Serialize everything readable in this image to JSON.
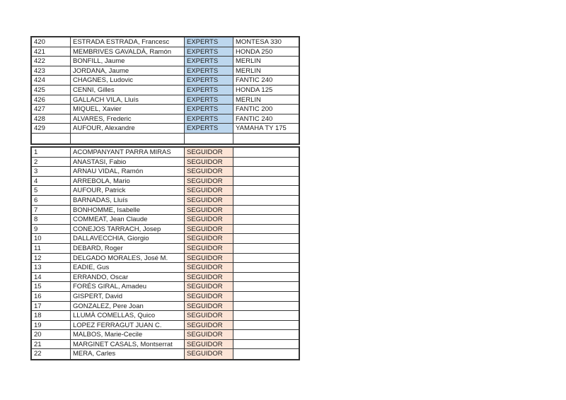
{
  "document": {
    "background_color": "#ffffff",
    "border_color": "#3a3a3a",
    "sections": [
      {
        "id": "experts",
        "category_bg": "#bdd7ee",
        "rows": [
          {
            "num": "420",
            "name": "ESTRADA ESTRADA, Francesc",
            "category": "EXPERTS",
            "bike": "MONTESA 330"
          },
          {
            "num": "421",
            "name": "MEMBRIVES GAVALDÀ, Ramón",
            "category": "EXPERTS",
            "bike": "HONDA 250"
          },
          {
            "num": "422",
            "name": "BONFILL, Jaume",
            "category": "EXPERTS",
            "bike": "MERLIN"
          },
          {
            "num": "423",
            "name": "JORDANA, Jaume",
            "category": "EXPERTS",
            "bike": "MERLIN"
          },
          {
            "num": "424",
            "name": "CHAGNES, Ludovic",
            "category": "EXPERTS",
            "bike": "FANTIC 240"
          },
          {
            "num": "425",
            "name": "CENNI, Gilles",
            "category": "EXPERTS",
            "bike": "HONDA 125"
          },
          {
            "num": "426",
            "name": "GALLACH VILA, Lluís",
            "category": "EXPERTS",
            "bike": "MERLIN"
          },
          {
            "num": "427",
            "name": "MIQUEL, Xavier",
            "category": "EXPERTS",
            "bike": "FANTIC 200"
          },
          {
            "num": "428",
            "name": "ALVARES, Frederic",
            "category": "EXPERTS",
            "bike": "FANTIC 240"
          },
          {
            "num": "429",
            "name": "AUFOUR, Alexandre",
            "category": "EXPERTS",
            "bike": "YAMAHA TY 175"
          },
          {
            "num": "",
            "name": "",
            "category": "",
            "bike": ""
          }
        ]
      },
      {
        "id": "seguidor",
        "category_bg": "#fce4d6",
        "rows": [
          {
            "num": "1",
            "name": "ACOMPANYANT PARRA MIRAS",
            "category": "SEGUIDOR",
            "bike": ""
          },
          {
            "num": "2",
            "name": "ANASTASI, Fabio",
            "category": "SEGUIDOR",
            "bike": ""
          },
          {
            "num": "3",
            "name": "ARNAU VIDAL, Ramón",
            "category": "SEGUIDOR",
            "bike": ""
          },
          {
            "num": "4",
            "name": "ARREBOLA, Mario",
            "category": "SEGUIDOR",
            "bike": ""
          },
          {
            "num": "5",
            "name": "AUFOUR, Patrick",
            "category": "SEGUIDOR",
            "bike": ""
          },
          {
            "num": "6",
            "name": "BARNADAS, Lluís",
            "category": "SEGUIDOR",
            "bike": ""
          },
          {
            "num": "7",
            "name": "BONHOMME, Isabelle",
            "category": "SEGUIDOR",
            "bike": ""
          },
          {
            "num": "8",
            "name": "COMMEAT, Jean Claude",
            "category": "SEGUIDOR",
            "bike": ""
          },
          {
            "num": "9",
            "name": "CONEJOS TARRACH, Josep",
            "category": "SEGUIDOR",
            "bike": ""
          },
          {
            "num": "10",
            "name": "DALLAVECCHIA, Giorgio",
            "category": "SEGUIDOR",
            "bike": ""
          },
          {
            "num": "11",
            "name": "DEBARD, Roger",
            "category": "SEGUIDOR",
            "bike": ""
          },
          {
            "num": "12",
            "name": "DELGADO MORALES, José M.",
            "category": "SEGUIDOR",
            "bike": ""
          },
          {
            "num": "13",
            "name": "EADIE, Gus",
            "category": "SEGUIDOR",
            "bike": ""
          },
          {
            "num": "14",
            "name": "ERRANDO, Oscar",
            "category": "SEGUIDOR",
            "bike": ""
          },
          {
            "num": "15",
            "name": "FORÉS GIRAL, Amadeu",
            "category": "SEGUIDOR",
            "bike": ""
          },
          {
            "num": "16",
            "name": "GISPERT, David",
            "category": "SEGUIDOR",
            "bike": ""
          },
          {
            "num": "17",
            "name": "GONZALEZ, Pere Joan",
            "category": "SEGUIDOR",
            "bike": ""
          },
          {
            "num": "18",
            "name": "LLUMÀ COMELLAS, Quico",
            "category": "SEGUIDOR",
            "bike": ""
          },
          {
            "num": "19",
            "name": "LOPEZ FERRAGUT JUAN C.",
            "category": "SEGUIDOR",
            "bike": ""
          },
          {
            "num": "20",
            "name": "MALBOS, Marie-Cecile",
            "category": "SEGUIDOR",
            "bike": ""
          },
          {
            "num": "21",
            "name": "MARGINET CASALS, Montserrat",
            "category": "SEGUIDOR",
            "bike": ""
          },
          {
            "num": "22",
            "name": "MERA, Carles",
            "category": "SEGUIDOR",
            "bike": ""
          }
        ]
      }
    ]
  }
}
